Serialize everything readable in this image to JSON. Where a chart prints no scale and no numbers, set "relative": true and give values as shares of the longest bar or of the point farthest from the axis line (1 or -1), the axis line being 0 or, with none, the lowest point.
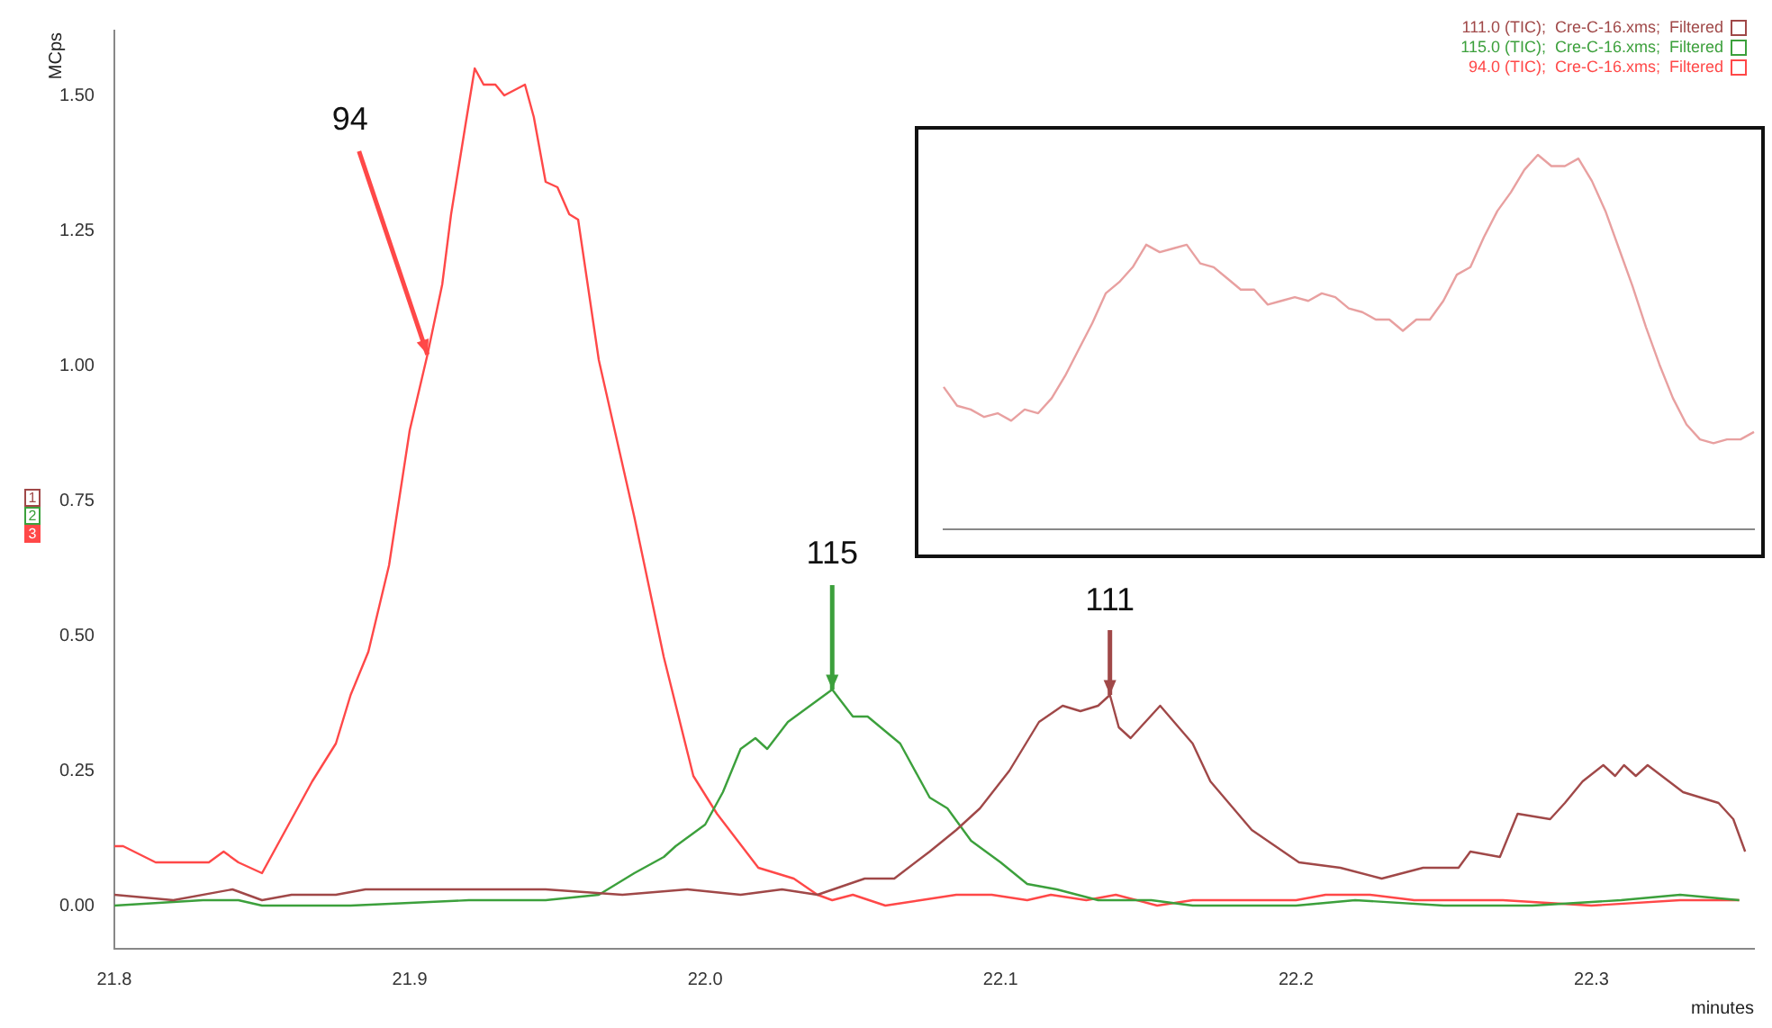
{
  "chart_data": [
    {
      "type": "line",
      "ylabel": "MCps",
      "xlabel": "minutes",
      "xlim": [
        21.8,
        22.355
      ],
      "ylim": [
        -0.08,
        1.62
      ],
      "xticks": [
        21.8,
        21.9,
        {
          "value": 22,
          "label": "22.0"
        },
        22.1,
        22.2,
        22.3
      ],
      "yticks": [
        {
          "value": 0,
          "label": "0.00"
        },
        {
          "value": 0.25,
          "label": "0.25"
        },
        {
          "value": 0.5,
          "label": "0.50"
        },
        {
          "value": 0.75,
          "label": "0.75"
        },
        {
          "value": 1,
          "label": "1.00"
        },
        {
          "value": 1.25,
          "label": "1.25"
        },
        {
          "value": 1.5,
          "label": "1.50"
        }
      ],
      "grid": false,
      "legend": "top right",
      "marker": "none",
      "line_style": "solid",
      "annotations": [
        {
          "text": "94",
          "x": 21.906,
          "y": 1.02
        },
        {
          "text": "115",
          "x": 22.043,
          "y": 0.4
        },
        {
          "text": "111",
          "x": 22.137,
          "y": 0.39
        },
        "1",
        "2",
        "3"
      ],
      "series": [
        {
          "name": "111.0 (TIC);  Cre-C-16.xms;  Filtered",
          "color": "#a04848",
          "x": [
            21.8,
            21.82,
            21.84,
            21.85,
            21.86,
            21.875,
            21.885,
            21.9,
            21.92,
            21.93,
            21.946,
            21.972,
            21.994,
            22.012,
            22.026,
            22.038,
            22.054,
            22.064,
            22.076,
            22.085,
            22.093,
            22.103,
            22.113,
            22.121,
            22.127,
            22.133,
            22.137,
            22.14,
            22.144,
            22.154,
            22.165,
            22.171,
            22.185,
            22.201,
            22.215,
            22.229,
            22.243,
            22.255,
            22.259,
            22.269,
            22.275,
            22.286,
            22.291,
            22.297,
            22.304,
            22.308,
            22.311,
            22.315,
            22.319,
            22.331,
            22.337,
            22.343,
            22.348,
            22.352
          ],
          "values": [
            0.02,
            0.01,
            0.03,
            0.01,
            0.02,
            0.02,
            0.03,
            0.03,
            0.03,
            0.03,
            0.03,
            0.02,
            0.03,
            0.02,
            0.03,
            0.02,
            0.05,
            0.05,
            0.1,
            0.14,
            0.18,
            0.25,
            0.34,
            0.37,
            0.36,
            0.37,
            0.39,
            0.33,
            0.31,
            0.37,
            0.3,
            0.23,
            0.14,
            0.08,
            0.07,
            0.05,
            0.07,
            0.07,
            0.1,
            0.09,
            0.17,
            0.16,
            0.19,
            0.23,
            0.26,
            0.24,
            0.26,
            0.24,
            0.26,
            0.21,
            0.2,
            0.19,
            0.16,
            0.1
          ]
        },
        {
          "name": "115.0 (TIC);  Cre-C-16.xms;  Filtered",
          "color": "#3ca03c",
          "x": [
            21.8,
            21.83,
            21.842,
            21.85,
            21.88,
            21.92,
            21.946,
            21.964,
            21.976,
            21.986,
            21.99,
            22.0,
            22.006,
            22.012,
            22.017,
            22.021,
            22.028,
            22.038,
            22.043,
            22.05,
            22.055,
            22.066,
            22.076,
            22.082,
            22.09,
            22.1,
            22.109,
            22.119,
            22.133,
            22.151,
            22.165,
            22.185,
            22.2,
            22.22,
            22.25,
            22.28,
            22.31,
            22.33,
            22.35
          ],
          "values": [
            0.0,
            0.01,
            0.01,
            0.0,
            0.0,
            0.01,
            0.01,
            0.02,
            0.06,
            0.09,
            0.11,
            0.15,
            0.21,
            0.29,
            0.31,
            0.29,
            0.34,
            0.38,
            0.4,
            0.35,
            0.35,
            0.3,
            0.2,
            0.18,
            0.12,
            0.08,
            0.04,
            0.03,
            0.01,
            0.01,
            0.0,
            0.0,
            0.0,
            0.01,
            0.0,
            0.0,
            0.01,
            0.02,
            0.01
          ]
        },
        {
          "name": "94.0 (TIC);  Cre-C-16.xms;  Filtered",
          "color": "#ff4848",
          "x": [
            21.8,
            21.803,
            21.814,
            21.819,
            21.825,
            21.832,
            21.837,
            21.842,
            21.85,
            21.856,
            21.861,
            21.867,
            21.875,
            21.88,
            21.886,
            21.893,
            21.9,
            21.906,
            21.911,
            21.914,
            21.919,
            21.922,
            21.925,
            21.929,
            21.932,
            21.939,
            21.942,
            21.946,
            21.95,
            21.954,
            21.957,
            21.964,
            21.976,
            21.986,
            21.996,
            22.004,
            22.018,
            22.03,
            22.038,
            22.043,
            22.05,
            22.061,
            22.073,
            22.085,
            22.097,
            22.109,
            22.117,
            22.129,
            22.139,
            22.153,
            22.165,
            22.185,
            22.2,
            22.21,
            22.225,
            22.24,
            22.27,
            22.3,
            22.33,
            22.35
          ],
          "values": [
            0.11,
            0.11,
            0.08,
            0.08,
            0.08,
            0.08,
            0.1,
            0.08,
            0.06,
            0.12,
            0.17,
            0.23,
            0.3,
            0.39,
            0.47,
            0.63,
            0.88,
            1.02,
            1.15,
            1.28,
            1.45,
            1.55,
            1.52,
            1.52,
            1.5,
            1.52,
            1.46,
            1.34,
            1.33,
            1.28,
            1.27,
            1.01,
            0.72,
            0.46,
            0.24,
            0.17,
            0.07,
            0.05,
            0.02,
            0.01,
            0.02,
            0.0,
            0.01,
            0.02,
            0.02,
            0.01,
            0.02,
            0.01,
            0.02,
            0.0,
            0.01,
            0.01,
            0.01,
            0.02,
            0.02,
            0.01,
            0.01,
            0.0,
            0.01,
            0.01
          ]
        }
      ]
    },
    {
      "type": "line",
      "relative": true,
      "grid": false,
      "marker": "none",
      "line_style": "solid",
      "categories": [
        null,
        null,
        null,
        null,
        null,
        null,
        null,
        null,
        null,
        null,
        null,
        null,
        null,
        null,
        null,
        null,
        null,
        null,
        null,
        null,
        null,
        null,
        null,
        null,
        null,
        null,
        null,
        null,
        null,
        null,
        null,
        null,
        null,
        null,
        null,
        null,
        null,
        null,
        null,
        null,
        null,
        null,
        null,
        null,
        null,
        null,
        null,
        null,
        null,
        null,
        null,
        null,
        null,
        null,
        null,
        null,
        null,
        null,
        null,
        null,
        null
      ],
      "series": [
        {
          "color": "#e8a0a0",
          "values": [
            0.38,
            0.33,
            0.32,
            0.3,
            0.31,
            0.29,
            0.32,
            0.31,
            0.35,
            0.41,
            0.48,
            0.55,
            0.63,
            0.66,
            0.7,
            0.76,
            0.74,
            0.75,
            0.76,
            0.71,
            0.7,
            0.67,
            0.64,
            0.64,
            0.6,
            0.61,
            0.62,
            0.61,
            0.63,
            0.62,
            0.59,
            0.58,
            0.56,
            0.56,
            0.53,
            0.56,
            0.56,
            0.61,
            0.68,
            0.7,
            0.78,
            0.85,
            0.9,
            0.96,
            1,
            0.97,
            0.97,
            0.99,
            0.93,
            0.85,
            0.75,
            0.65,
            0.54,
            0.44,
            0.35,
            0.28,
            0.24,
            0.23,
            0.24,
            0.24,
            0.26
          ]
        }
      ]
    }
  ]
}
